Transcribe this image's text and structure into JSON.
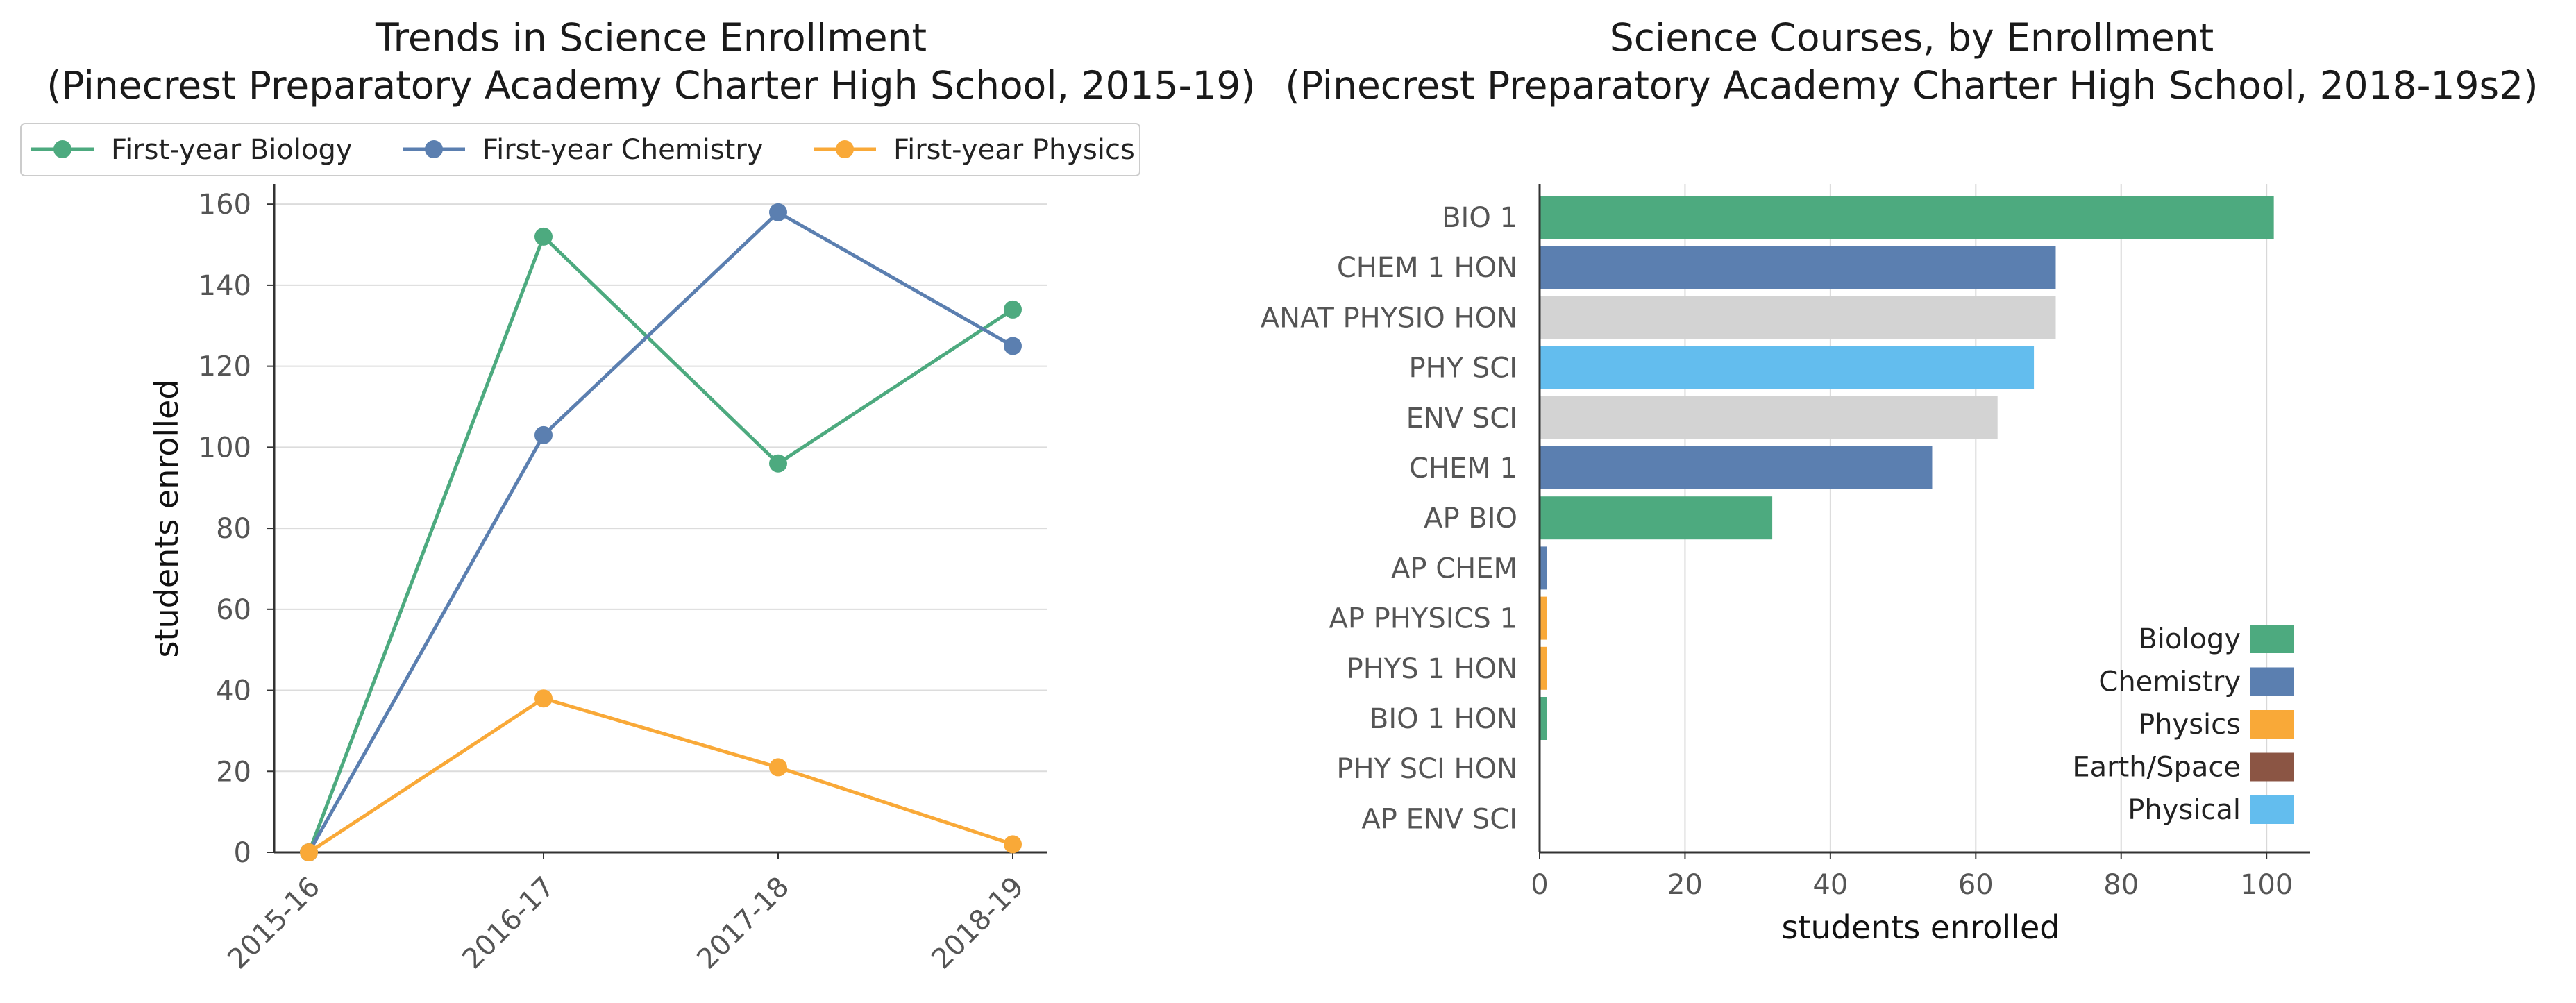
{
  "chart_data": [
    {
      "type": "line",
      "title": "Trends in Science Enrollment",
      "subtitle": "(Pinecrest Preparatory Academy Charter High School, 2015-19)",
      "xlabel": "",
      "ylabel": "students enrolled",
      "categories": [
        "2015-16",
        "2016-17",
        "2017-18",
        "2018-19"
      ],
      "ylim": [
        0,
        165
      ],
      "yticks": [
        0,
        20,
        40,
        60,
        80,
        100,
        120,
        140,
        160
      ],
      "grid": "horizontal",
      "legend": "top",
      "series": [
        {
          "name": "First-year Biology",
          "color": "#4daa7f",
          "values": [
            0,
            152,
            96,
            134
          ]
        },
        {
          "name": "First-year Chemistry",
          "color": "#5b7fb0",
          "values": [
            0,
            103,
            158,
            125
          ]
        },
        {
          "name": "First-year Physics",
          "color": "#f9a938",
          "values": [
            0,
            38,
            21,
            2
          ]
        }
      ]
    },
    {
      "type": "bar",
      "orientation": "horizontal",
      "title": "Science Courses, by Enrollment",
      "subtitle": "(Pinecrest Preparatory Academy Charter High School, 2018-19s2)",
      "xlabel": "students enrolled",
      "ylabel": "",
      "xlim": [
        0,
        106
      ],
      "xticks": [
        0,
        20,
        40,
        60,
        80,
        100
      ],
      "grid": "vertical",
      "legend": "bottom-right",
      "categories": [
        "BIO 1",
        "CHEM 1 HON",
        "ANAT PHYSIO HON",
        "PHY SCI",
        "ENV SCI",
        "CHEM 1",
        "AP BIO",
        "AP CHEM",
        "AP PHYSICS 1",
        "PHYS 1 HON",
        "BIO 1 HON",
        "PHY SCI HON",
        "AP ENV SCI"
      ],
      "values": [
        101,
        71,
        71,
        68,
        63,
        54,
        32,
        1,
        1,
        1,
        1,
        0,
        0
      ],
      "colors": [
        "#4daa7f",
        "#5b7fb0",
        "#d3d3d3",
        "#63bdee",
        "#d3d3d3",
        "#5b7fb0",
        "#4daa7f",
        "#5b7fb0",
        "#f9a938",
        "#f9a938",
        "#4daa7f",
        "#63bdee",
        "#d3d3d3"
      ],
      "legend_items": [
        {
          "name": "Biology",
          "color": "#4daa7f"
        },
        {
          "name": "Chemistry",
          "color": "#5b7fb0"
        },
        {
          "name": "Physics",
          "color": "#f9a938"
        },
        {
          "name": "Earth/Space",
          "color": "#8b5544"
        },
        {
          "name": "Physical",
          "color": "#63bdee"
        }
      ]
    }
  ]
}
